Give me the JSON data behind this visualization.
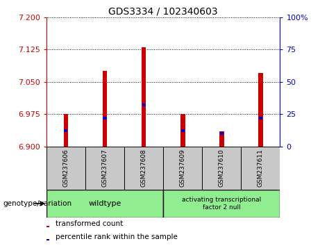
{
  "title": "GDS3334 / 102340603",
  "samples": [
    "GSM237606",
    "GSM237607",
    "GSM237608",
    "GSM237609",
    "GSM237610",
    "GSM237611"
  ],
  "ylim_left": [
    6.9,
    7.2
  ],
  "ylim_right": [
    0,
    100
  ],
  "yticks_left": [
    6.9,
    6.975,
    7.05,
    7.125,
    7.2
  ],
  "yticks_right": [
    0,
    25,
    50,
    75,
    100
  ],
  "bar_base": 6.9,
  "red_tops": [
    6.975,
    7.075,
    7.13,
    6.975,
    6.935,
    7.07
  ],
  "blue_pct": [
    12,
    22,
    32,
    12,
    10,
    22
  ],
  "red_color": "#cc0000",
  "blue_color": "#0000cc",
  "bar_width": 0.12,
  "blue_bar_width": 0.09,
  "group1_label": "wildtype",
  "group2_label": "activating transcriptional\nfactor 2 null",
  "group_color": "#90EE90",
  "group_row_label": "genotype/variation",
  "legend_red": "transformed count",
  "legend_blue": "percentile rank within the sample",
  "tick_color_left": "#cc0000",
  "tick_color_right": "#0000cc",
  "sample_bg_color": "#c8c8c8",
  "bg_color": "#ffffff",
  "title_fontsize": 10,
  "tick_fontsize": 8,
  "sample_fontsize": 6.5,
  "group_fontsize": 8,
  "legend_fontsize": 7.5,
  "label_fontsize": 7.5
}
